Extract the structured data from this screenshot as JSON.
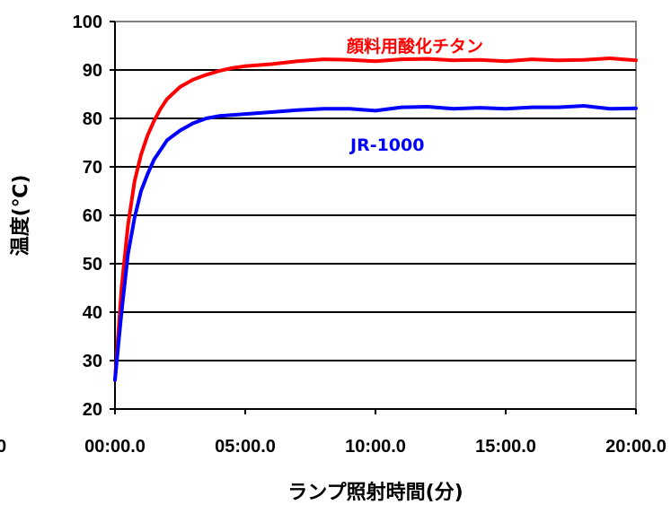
{
  "chart_data": {
    "type": "line",
    "xlabel": "ランプ照射時間(分)",
    "ylabel": "温度(℃)",
    "ylim": [
      20,
      100
    ],
    "yticks": [
      20,
      30,
      40,
      50,
      60,
      70,
      80,
      90,
      100
    ],
    "xlim": [
      0,
      20
    ],
    "xticks": [
      0,
      5,
      10,
      15,
      20
    ],
    "xtick_labels": [
      "00:00.0",
      "05:00.0",
      "10:00.0",
      "15:00.0",
      "20:00.0"
    ],
    "left_edge_fragment": "0",
    "grid": "horizontal",
    "series": [
      {
        "name": "顔料用酸化チタン",
        "color": "#ff0000",
        "x": [
          0,
          0.25,
          0.5,
          0.75,
          1.0,
          1.25,
          1.5,
          1.75,
          2.0,
          2.5,
          3.0,
          3.5,
          4.0,
          4.5,
          5.0,
          6.0,
          7.0,
          8.0,
          9.0,
          10.0,
          11.0,
          12.0,
          13.0,
          14.0,
          15.0,
          16.0,
          17.0,
          18.0,
          19.0,
          20.0
        ],
        "y": [
          26,
          45,
          58,
          67,
          72.5,
          76.5,
          79.5,
          82,
          84,
          86.5,
          88,
          89,
          89.8,
          90.4,
          90.8,
          91.2,
          91.8,
          92.2,
          92.1,
          91.8,
          92.2,
          92.3,
          92.0,
          92.1,
          91.8,
          92.2,
          92.0,
          92.1,
          92.4,
          92.0
        ]
      },
      {
        "name": "JR-1000",
        "color": "#0000ff",
        "x": [
          0,
          0.25,
          0.5,
          0.75,
          1.0,
          1.25,
          1.5,
          1.75,
          2.0,
          2.5,
          3.0,
          3.5,
          4.0,
          4.5,
          5.0,
          6.0,
          7.0,
          8.0,
          9.0,
          10.0,
          11.0,
          12.0,
          13.0,
          14.0,
          15.0,
          16.0,
          17.0,
          18.0,
          19.0,
          20.0
        ],
        "y": [
          26,
          40,
          52,
          59.5,
          65,
          68.5,
          71.5,
          73.5,
          75.5,
          77.5,
          79,
          80,
          80.5,
          80.7,
          80.9,
          81.3,
          81.7,
          82.0,
          82.0,
          81.6,
          82.3,
          82.4,
          82.0,
          82.2,
          82.0,
          82.3,
          82.3,
          82.6,
          82.0,
          82.1
        ]
      }
    ]
  }
}
